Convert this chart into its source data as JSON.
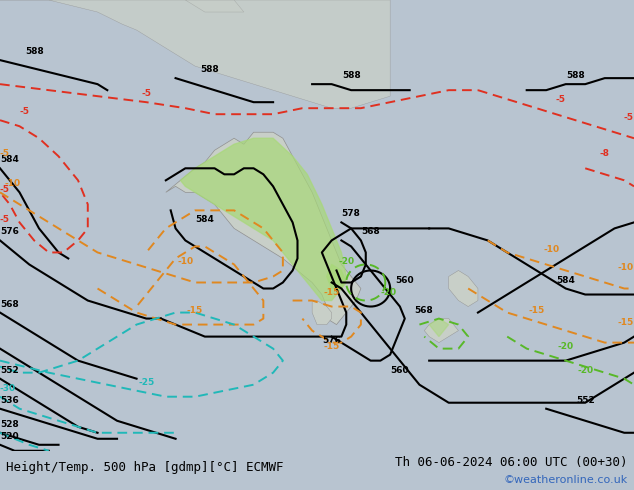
{
  "title_left": "Height/Temp. 500 hPa [gdmp][°C] ECMWF",
  "title_right": "Th 06-06-2024 06:00 UTC (00+30)",
  "credit": "©weatheronline.co.uk",
  "bg_ocean": "#b8c4d0",
  "bg_land": "#c8cfc8",
  "green_fill": "#a8d878",
  "title_fontsize": 9,
  "credit_fontsize": 8,
  "credit_color": "#3366bb",
  "lon_min": 80,
  "lon_max": 210,
  "lat_min": -65,
  "lat_max": 10
}
